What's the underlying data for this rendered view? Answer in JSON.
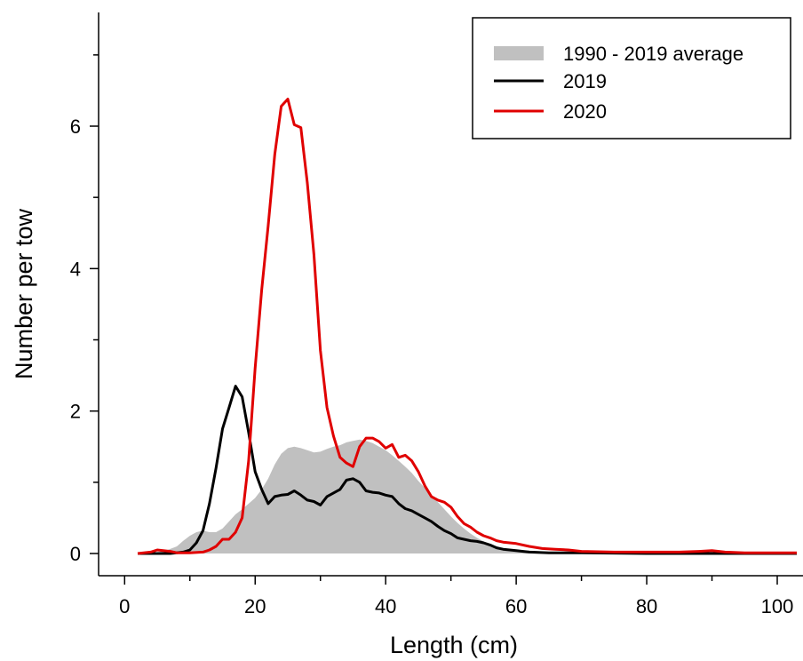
{
  "chart_data": {
    "type": "line",
    "xlabel": "Length (cm)",
    "ylabel": "Number per tow",
    "xlim": [
      0,
      103
    ],
    "ylim": [
      0,
      7.4
    ],
    "x_ticks": [
      0,
      20,
      40,
      60,
      80,
      100
    ],
    "y_ticks": [
      0,
      2,
      4,
      6
    ],
    "grid": false,
    "legend": {
      "position": "top-right",
      "entries": [
        "1990 - 2019 average",
        "2019",
        "2020"
      ]
    },
    "series": [
      {
        "name": "1990 - 2019 average",
        "style": "area",
        "color": "#c0c0c0",
        "points": [
          [
            2,
            0
          ],
          [
            4,
            0.01
          ],
          [
            6,
            0.03
          ],
          [
            8,
            0.1
          ],
          [
            9,
            0.18
          ],
          [
            10,
            0.25
          ],
          [
            11,
            0.3
          ],
          [
            12,
            0.32
          ],
          [
            13,
            0.3
          ],
          [
            14,
            0.3
          ],
          [
            15,
            0.35
          ],
          [
            16,
            0.45
          ],
          [
            17,
            0.55
          ],
          [
            18,
            0.62
          ],
          [
            19,
            0.7
          ],
          [
            20,
            0.78
          ],
          [
            21,
            0.9
          ],
          [
            22,
            1.05
          ],
          [
            23,
            1.25
          ],
          [
            24,
            1.4
          ],
          [
            25,
            1.48
          ],
          [
            26,
            1.5
          ],
          [
            27,
            1.48
          ],
          [
            28,
            1.45
          ],
          [
            29,
            1.42
          ],
          [
            30,
            1.43
          ],
          [
            31,
            1.47
          ],
          [
            32,
            1.5
          ],
          [
            33,
            1.52
          ],
          [
            34,
            1.56
          ],
          [
            35,
            1.58
          ],
          [
            36,
            1.6
          ],
          [
            37,
            1.58
          ],
          [
            38,
            1.55
          ],
          [
            39,
            1.5
          ],
          [
            40,
            1.45
          ],
          [
            41,
            1.38
          ],
          [
            42,
            1.3
          ],
          [
            43,
            1.22
          ],
          [
            44,
            1.13
          ],
          [
            45,
            1.02
          ],
          [
            46,
            0.92
          ],
          [
            47,
            0.82
          ],
          [
            48,
            0.72
          ],
          [
            49,
            0.62
          ],
          [
            50,
            0.52
          ],
          [
            51,
            0.43
          ],
          [
            52,
            0.35
          ],
          [
            53,
            0.28
          ],
          [
            54,
            0.22
          ],
          [
            55,
            0.17
          ],
          [
            56,
            0.13
          ],
          [
            57,
            0.1
          ],
          [
            58,
            0.07
          ],
          [
            60,
            0.05
          ],
          [
            62,
            0.04
          ],
          [
            64,
            0.03
          ],
          [
            66,
            0.02
          ],
          [
            70,
            0.02
          ],
          [
            80,
            0.01
          ],
          [
            90,
            0.01
          ],
          [
            103,
            0.01
          ]
        ]
      },
      {
        "name": "2019",
        "style": "line",
        "color": "#000000",
        "points": [
          [
            2,
            0
          ],
          [
            5,
            0
          ],
          [
            7,
            0
          ],
          [
            9,
            0.02
          ],
          [
            10,
            0.05
          ],
          [
            11,
            0.15
          ],
          [
            12,
            0.32
          ],
          [
            13,
            0.7
          ],
          [
            14,
            1.2
          ],
          [
            15,
            1.75
          ],
          [
            16,
            2.05
          ],
          [
            17,
            2.35
          ],
          [
            18,
            2.2
          ],
          [
            19,
            1.7
          ],
          [
            20,
            1.15
          ],
          [
            21,
            0.9
          ],
          [
            22,
            0.7
          ],
          [
            23,
            0.8
          ],
          [
            24,
            0.82
          ],
          [
            25,
            0.83
          ],
          [
            26,
            0.88
          ],
          [
            27,
            0.82
          ],
          [
            28,
            0.75
          ],
          [
            29,
            0.73
          ],
          [
            30,
            0.68
          ],
          [
            31,
            0.8
          ],
          [
            32,
            0.85
          ],
          [
            33,
            0.9
          ],
          [
            34,
            1.03
          ],
          [
            35,
            1.05
          ],
          [
            36,
            1.0
          ],
          [
            37,
            0.88
          ],
          [
            38,
            0.86
          ],
          [
            39,
            0.85
          ],
          [
            40,
            0.82
          ],
          [
            41,
            0.8
          ],
          [
            42,
            0.7
          ],
          [
            43,
            0.63
          ],
          [
            44,
            0.6
          ],
          [
            45,
            0.55
          ],
          [
            46,
            0.5
          ],
          [
            47,
            0.45
          ],
          [
            48,
            0.38
          ],
          [
            49,
            0.32
          ],
          [
            50,
            0.28
          ],
          [
            51,
            0.22
          ],
          [
            52,
            0.2
          ],
          [
            53,
            0.18
          ],
          [
            54,
            0.17
          ],
          [
            55,
            0.15
          ],
          [
            56,
            0.12
          ],
          [
            57,
            0.08
          ],
          [
            58,
            0.06
          ],
          [
            60,
            0.04
          ],
          [
            62,
            0.02
          ],
          [
            65,
            0.01
          ],
          [
            70,
            0.01
          ],
          [
            80,
            0
          ],
          [
            90,
            0
          ],
          [
            103,
            0
          ]
        ]
      },
      {
        "name": "2020",
        "style": "line",
        "color": "#e00000",
        "points": [
          [
            2,
            0
          ],
          [
            4,
            0.02
          ],
          [
            5,
            0.05
          ],
          [
            7,
            0.03
          ],
          [
            8,
            0.01
          ],
          [
            10,
            0.01
          ],
          [
            12,
            0.02
          ],
          [
            13,
            0.05
          ],
          [
            14,
            0.1
          ],
          [
            15,
            0.2
          ],
          [
            16,
            0.2
          ],
          [
            17,
            0.3
          ],
          [
            18,
            0.5
          ],
          [
            19,
            1.3
          ],
          [
            20,
            2.6
          ],
          [
            21,
            3.7
          ],
          [
            22,
            4.6
          ],
          [
            23,
            5.6
          ],
          [
            24,
            6.28
          ],
          [
            25,
            6.38
          ],
          [
            26,
            6.02
          ],
          [
            27,
            5.98
          ],
          [
            28,
            5.2
          ],
          [
            29,
            4.2
          ],
          [
            30,
            2.85
          ],
          [
            31,
            2.05
          ],
          [
            32,
            1.65
          ],
          [
            33,
            1.35
          ],
          [
            34,
            1.27
          ],
          [
            35,
            1.22
          ],
          [
            36,
            1.5
          ],
          [
            37,
            1.62
          ],
          [
            38,
            1.62
          ],
          [
            39,
            1.57
          ],
          [
            40,
            1.48
          ],
          [
            41,
            1.53
          ],
          [
            42,
            1.35
          ],
          [
            43,
            1.38
          ],
          [
            44,
            1.3
          ],
          [
            45,
            1.15
          ],
          [
            46,
            0.95
          ],
          [
            47,
            0.8
          ],
          [
            48,
            0.75
          ],
          [
            49,
            0.72
          ],
          [
            50,
            0.65
          ],
          [
            51,
            0.52
          ],
          [
            52,
            0.42
          ],
          [
            53,
            0.37
          ],
          [
            54,
            0.3
          ],
          [
            55,
            0.25
          ],
          [
            56,
            0.22
          ],
          [
            57,
            0.18
          ],
          [
            58,
            0.16
          ],
          [
            60,
            0.14
          ],
          [
            62,
            0.1
          ],
          [
            64,
            0.07
          ],
          [
            66,
            0.06
          ],
          [
            68,
            0.05
          ],
          [
            70,
            0.03
          ],
          [
            75,
            0.02
          ],
          [
            80,
            0.02
          ],
          [
            85,
            0.02
          ],
          [
            88,
            0.03
          ],
          [
            90,
            0.04
          ],
          [
            92,
            0.02
          ],
          [
            95,
            0.01
          ],
          [
            103,
            0.01
          ]
        ]
      }
    ]
  }
}
